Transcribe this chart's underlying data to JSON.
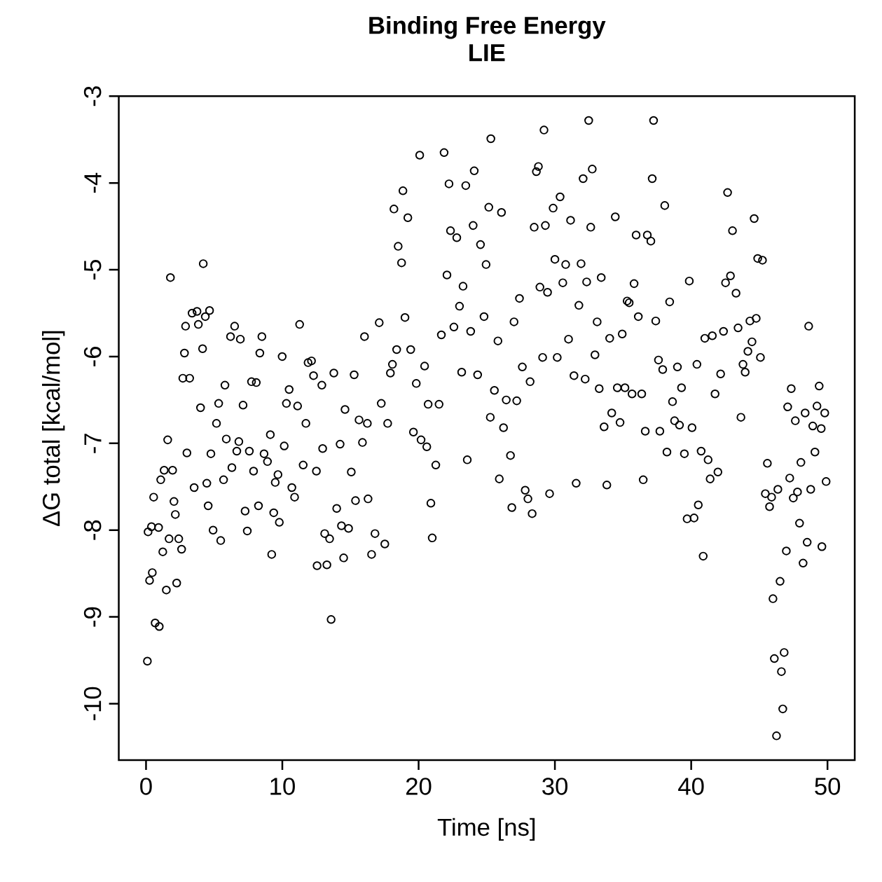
{
  "chart_data": {
    "type": "scatter",
    "title": "Binding Free Energy",
    "subtitle": "LIE",
    "xlabel": "Time [ns]",
    "ylabel": "ΔG total [kcal/mol]",
    "xlim": [
      -2,
      52
    ],
    "ylim": [
      -10.65,
      -3.0
    ],
    "xticks": [
      0,
      10,
      20,
      30,
      40,
      50
    ],
    "yticks": [
      -10,
      -9,
      -8,
      -7,
      -6,
      -5,
      -4,
      -3
    ],
    "marker": "circle",
    "color": "#000000",
    "x": [
      0.1,
      0.15,
      0.26,
      0.4,
      0.46,
      0.56,
      0.67,
      0.97,
      0.92,
      1.08,
      1.23,
      1.33,
      1.49,
      1.59,
      1.69,
      1.79,
      1.95,
      2.05,
      2.15,
      2.25,
      2.4,
      2.61,
      2.7,
      2.82,
      2.9,
      3.0,
      3.2,
      3.38,
      3.53,
      3.74,
      3.84,
      4.0,
      4.15,
      4.2,
      4.35,
      4.46,
      4.56,
      4.66,
      4.76,
      4.92,
      5.17,
      5.33,
      5.48,
      5.69,
      5.79,
      5.89,
      6.2,
      6.3,
      6.5,
      6.66,
      6.81,
      6.92,
      7.12,
      7.27,
      7.43,
      7.58,
      7.74,
      7.89,
      8.09,
      8.25,
      8.35,
      8.5,
      8.66,
      8.91,
      9.12,
      9.22,
      9.37,
      9.48,
      9.68,
      9.78,
      9.99,
      10.14,
      10.3,
      10.5,
      10.7,
      10.9,
      11.12,
      11.27,
      11.53,
      11.73,
      11.89,
      12.14,
      12.29,
      12.5,
      12.55,
      12.9,
      12.96,
      13.11,
      13.27,
      13.47,
      13.58,
      13.78,
      13.99,
      14.24,
      14.34,
      14.5,
      14.6,
      14.86,
      15.06,
      15.27,
      15.37,
      15.63,
      15.88,
      16.03,
      16.24,
      16.29,
      16.55,
      16.8,
      17.11,
      17.26,
      17.52,
      17.73,
      17.93,
      18.08,
      18.19,
      18.39,
      18.5,
      18.75,
      18.85,
      19.0,
      19.21,
      19.42,
      19.62,
      19.83,
      20.08,
      20.18,
      20.44,
      20.6,
      20.7,
      20.9,
      21.0,
      21.26,
      21.5,
      21.67,
      21.87,
      22.08,
      22.23,
      22.34,
      22.59,
      22.8,
      23.0,
      23.16,
      23.26,
      23.46,
      23.57,
      23.82,
      24.0,
      24.08,
      24.33,
      24.54,
      24.8,
      24.95,
      25.15,
      25.26,
      25.3,
      25.56,
      25.82,
      25.92,
      26.08,
      26.23,
      26.43,
      26.74,
      26.84,
      27.0,
      27.2,
      27.4,
      27.61,
      27.82,
      28.02,
      28.18,
      28.33,
      28.48,
      28.64,
      28.79,
      28.9,
      29.1,
      29.2,
      29.3,
      29.46,
      29.61,
      29.87,
      30.0,
      30.17,
      30.38,
      30.58,
      30.79,
      31.0,
      31.15,
      31.4,
      31.56,
      31.76,
      31.92,
      32.07,
      32.22,
      32.33,
      32.48,
      32.63,
      32.74,
      32.94,
      33.1,
      33.25,
      33.4,
      33.61,
      33.81,
      34.02,
      34.17,
      34.43,
      34.58,
      34.78,
      34.94,
      35.14,
      35.3,
      35.45,
      35.66,
      35.81,
      35.96,
      36.12,
      36.37,
      36.48,
      36.63,
      36.78,
      37.04,
      37.14,
      37.24,
      37.4,
      37.6,
      37.7,
      37.91,
      38.06,
      38.22,
      38.42,
      38.63,
      38.78,
      38.99,
      39.14,
      39.29,
      39.5,
      39.7,
      39.86,
      40.06,
      40.21,
      40.42,
      40.52,
      40.73,
      40.88,
      41.0,
      41.24,
      41.39,
      41.55,
      41.75,
      41.96,
      42.16,
      42.37,
      42.52,
      42.67,
      42.88,
      43.03,
      43.29,
      43.44,
      43.65,
      43.8,
      43.96,
      44.16,
      44.31,
      44.46,
      44.62,
      44.77,
      44.88,
      45.08,
      45.23,
      45.44,
      45.59,
      45.75,
      45.9,
      46.0,
      46.1,
      46.26,
      46.36,
      46.52,
      46.62,
      46.72,
      46.82,
      46.98,
      47.08,
      47.23,
      47.34,
      47.49,
      47.64,
      47.8,
      47.95,
      48.05,
      48.21,
      48.36,
      48.51,
      48.62,
      48.77,
      48.92,
      49.08,
      49.23,
      49.39,
      49.54,
      49.59,
      49.8,
      49.9
    ],
    "values": [
      -9.51,
      -8.02,
      -8.58,
      -7.96,
      -8.49,
      -7.62,
      -9.07,
      -9.11,
      -7.97,
      -7.42,
      -8.25,
      -7.31,
      -8.69,
      -6.96,
      -8.1,
      -5.09,
      -7.31,
      -7.67,
      -7.82,
      -8.61,
      -8.1,
      -8.22,
      -6.25,
      -5.96,
      -5.65,
      -7.11,
      -6.25,
      -5.5,
      -7.51,
      -5.48,
      -5.63,
      -6.59,
      -5.91,
      -4.93,
      -5.54,
      -7.46,
      -7.72,
      -5.47,
      -7.12,
      -8.0,
      -6.77,
      -6.54,
      -8.12,
      -7.42,
      -6.33,
      -6.95,
      -5.77,
      -7.28,
      -5.65,
      -7.09,
      -6.98,
      -5.8,
      -6.56,
      -7.78,
      -8.01,
      -7.09,
      -6.29,
      -7.32,
      -6.3,
      -7.72,
      -5.96,
      -5.77,
      -7.12,
      -7.21,
      -6.9,
      -8.28,
      -7.8,
      -7.45,
      -7.36,
      -7.91,
      -6.0,
      -7.03,
      -6.54,
      -6.38,
      -7.51,
      -7.62,
      -6.57,
      -5.63,
      -7.25,
      -6.77,
      -6.07,
      -6.05,
      -6.22,
      -7.32,
      -8.41,
      -6.33,
      -7.06,
      -8.04,
      -8.4,
      -8.1,
      -9.03,
      -6.19,
      -7.75,
      -7.01,
      -7.95,
      -8.32,
      -6.61,
      -7.98,
      -7.33,
      -6.21,
      -7.66,
      -6.73,
      -6.99,
      -5.77,
      -6.77,
      -7.64,
      -8.28,
      -8.04,
      -5.61,
      -6.54,
      -8.16,
      -6.77,
      -6.19,
      -6.09,
      -4.3,
      -5.92,
      -4.73,
      -4.92,
      -4.09,
      -5.55,
      -4.4,
      -5.92,
      -6.87,
      -6.31,
      -3.68,
      -6.96,
      -6.11,
      -7.04,
      -6.55,
      -7.69,
      -8.09,
      -7.25,
      -6.55,
      -5.75,
      -3.65,
      -5.06,
      -4.01,
      -4.55,
      -5.66,
      -4.63,
      -5.42,
      -6.18,
      -5.19,
      -4.03,
      -7.19,
      -5.71,
      -4.49,
      -3.86,
      -6.21,
      -4.71,
      -5.54,
      -4.94,
      -4.28,
      -6.7,
      -3.49,
      -6.39,
      -5.82,
      -7.41,
      -4.34,
      -6.82,
      -6.5,
      -7.14,
      -7.74,
      -5.6,
      -6.51,
      -5.33,
      -6.12,
      -7.54,
      -7.64,
      -6.29,
      -7.81,
      -4.51,
      -3.87,
      -3.81,
      -5.2,
      -6.01,
      -3.39,
      -4.49,
      -5.26,
      -7.58,
      -4.29,
      -4.88,
      -6.01,
      -4.16,
      -5.15,
      -4.94,
      -5.8,
      -4.43,
      -6.22,
      -7.46,
      -5.41,
      -4.93,
      -3.95,
      -6.26,
      -5.14,
      -3.28,
      -4.51,
      -3.84,
      -5.98,
      -5.6,
      -6.37,
      -5.09,
      -6.81,
      -7.48,
      -5.79,
      -6.65,
      -4.39,
      -6.36,
      -6.76,
      -5.74,
      -6.36,
      -5.36,
      -5.38,
      -6.43,
      -5.16,
      -4.6,
      -5.54,
      -6.43,
      -7.42,
      -6.86,
      -4.6,
      -4.67,
      -3.95,
      -3.28,
      -5.59,
      -6.04,
      -6.86,
      -6.15,
      -4.26,
      -7.1,
      -5.37,
      -6.52,
      -6.74,
      -6.12,
      -6.79,
      -6.36,
      -7.12,
      -7.87,
      -5.13,
      -6.82,
      -7.86,
      -6.09,
      -7.71,
      -7.09,
      -8.3,
      -5.79,
      -7.19,
      -7.41,
      -5.76,
      -6.43,
      -7.33,
      -6.2,
      -5.71,
      -5.15,
      -4.11,
      -5.07,
      -4.55,
      -5.27,
      -5.67,
      -6.7,
      -6.09,
      -6.18,
      -5.94,
      -5.59,
      -5.83,
      -4.41,
      -5.56,
      -4.87,
      -6.01,
      -4.89,
      -7.58,
      -7.23,
      -7.73,
      -7.62,
      -8.79,
      -9.48,
      -10.37,
      -7.53,
      -8.59,
      -9.63,
      -10.06,
      -9.41,
      -8.24,
      -6.58,
      -7.4,
      -6.37,
      -7.63,
      -6.74,
      -7.56,
      -7.92,
      -7.22,
      -8.38,
      -6.65,
      -8.14,
      -5.65,
      -7.53,
      -6.8,
      -7.1,
      -6.57,
      -6.34,
      -6.83,
      -8.19,
      -6.65,
      -7.44
    ]
  }
}
